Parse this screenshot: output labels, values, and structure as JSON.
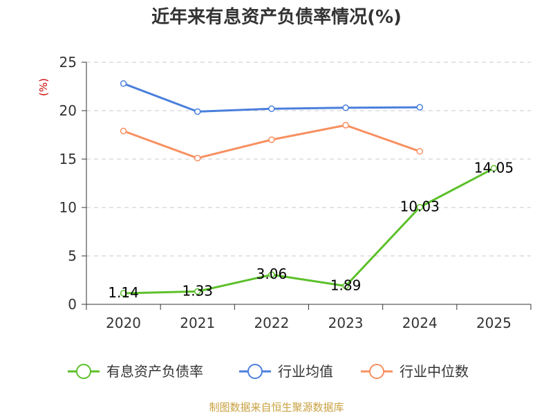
{
  "chart_data": {
    "type": "line",
    "title": "近年来有息资产负债率情况(%)",
    "y_unit_label": "(%)",
    "ylim": [
      0,
      25
    ],
    "y_ticks": [
      "0",
      "5",
      "10",
      "15",
      "20",
      "25"
    ],
    "categories": [
      "2020",
      "2021",
      "2022",
      "2023",
      "2024",
      "2025"
    ],
    "grid": true,
    "legend_position": "bottom",
    "series": [
      {
        "name": "有息资产负债率",
        "color": "#5cc02a",
        "values": [
          1.14,
          1.33,
          3.06,
          1.89,
          10.03,
          14.05
        ],
        "labels": [
          "1.14",
          "1.33",
          "3.06",
          "1.89",
          "10.03",
          "14.05"
        ],
        "show_labels": true
      },
      {
        "name": "行业均值",
        "color": "#4a7fdc",
        "values": [
          22.8,
          19.9,
          20.2,
          20.3,
          20.35,
          null
        ],
        "show_labels": false
      },
      {
        "name": "行业中位数",
        "color": "#f79060",
        "values": [
          17.9,
          15.1,
          17.0,
          18.5,
          15.8,
          null
        ],
        "show_labels": false
      }
    ]
  },
  "source_text": "制图数据来自恒生聚源数据库"
}
